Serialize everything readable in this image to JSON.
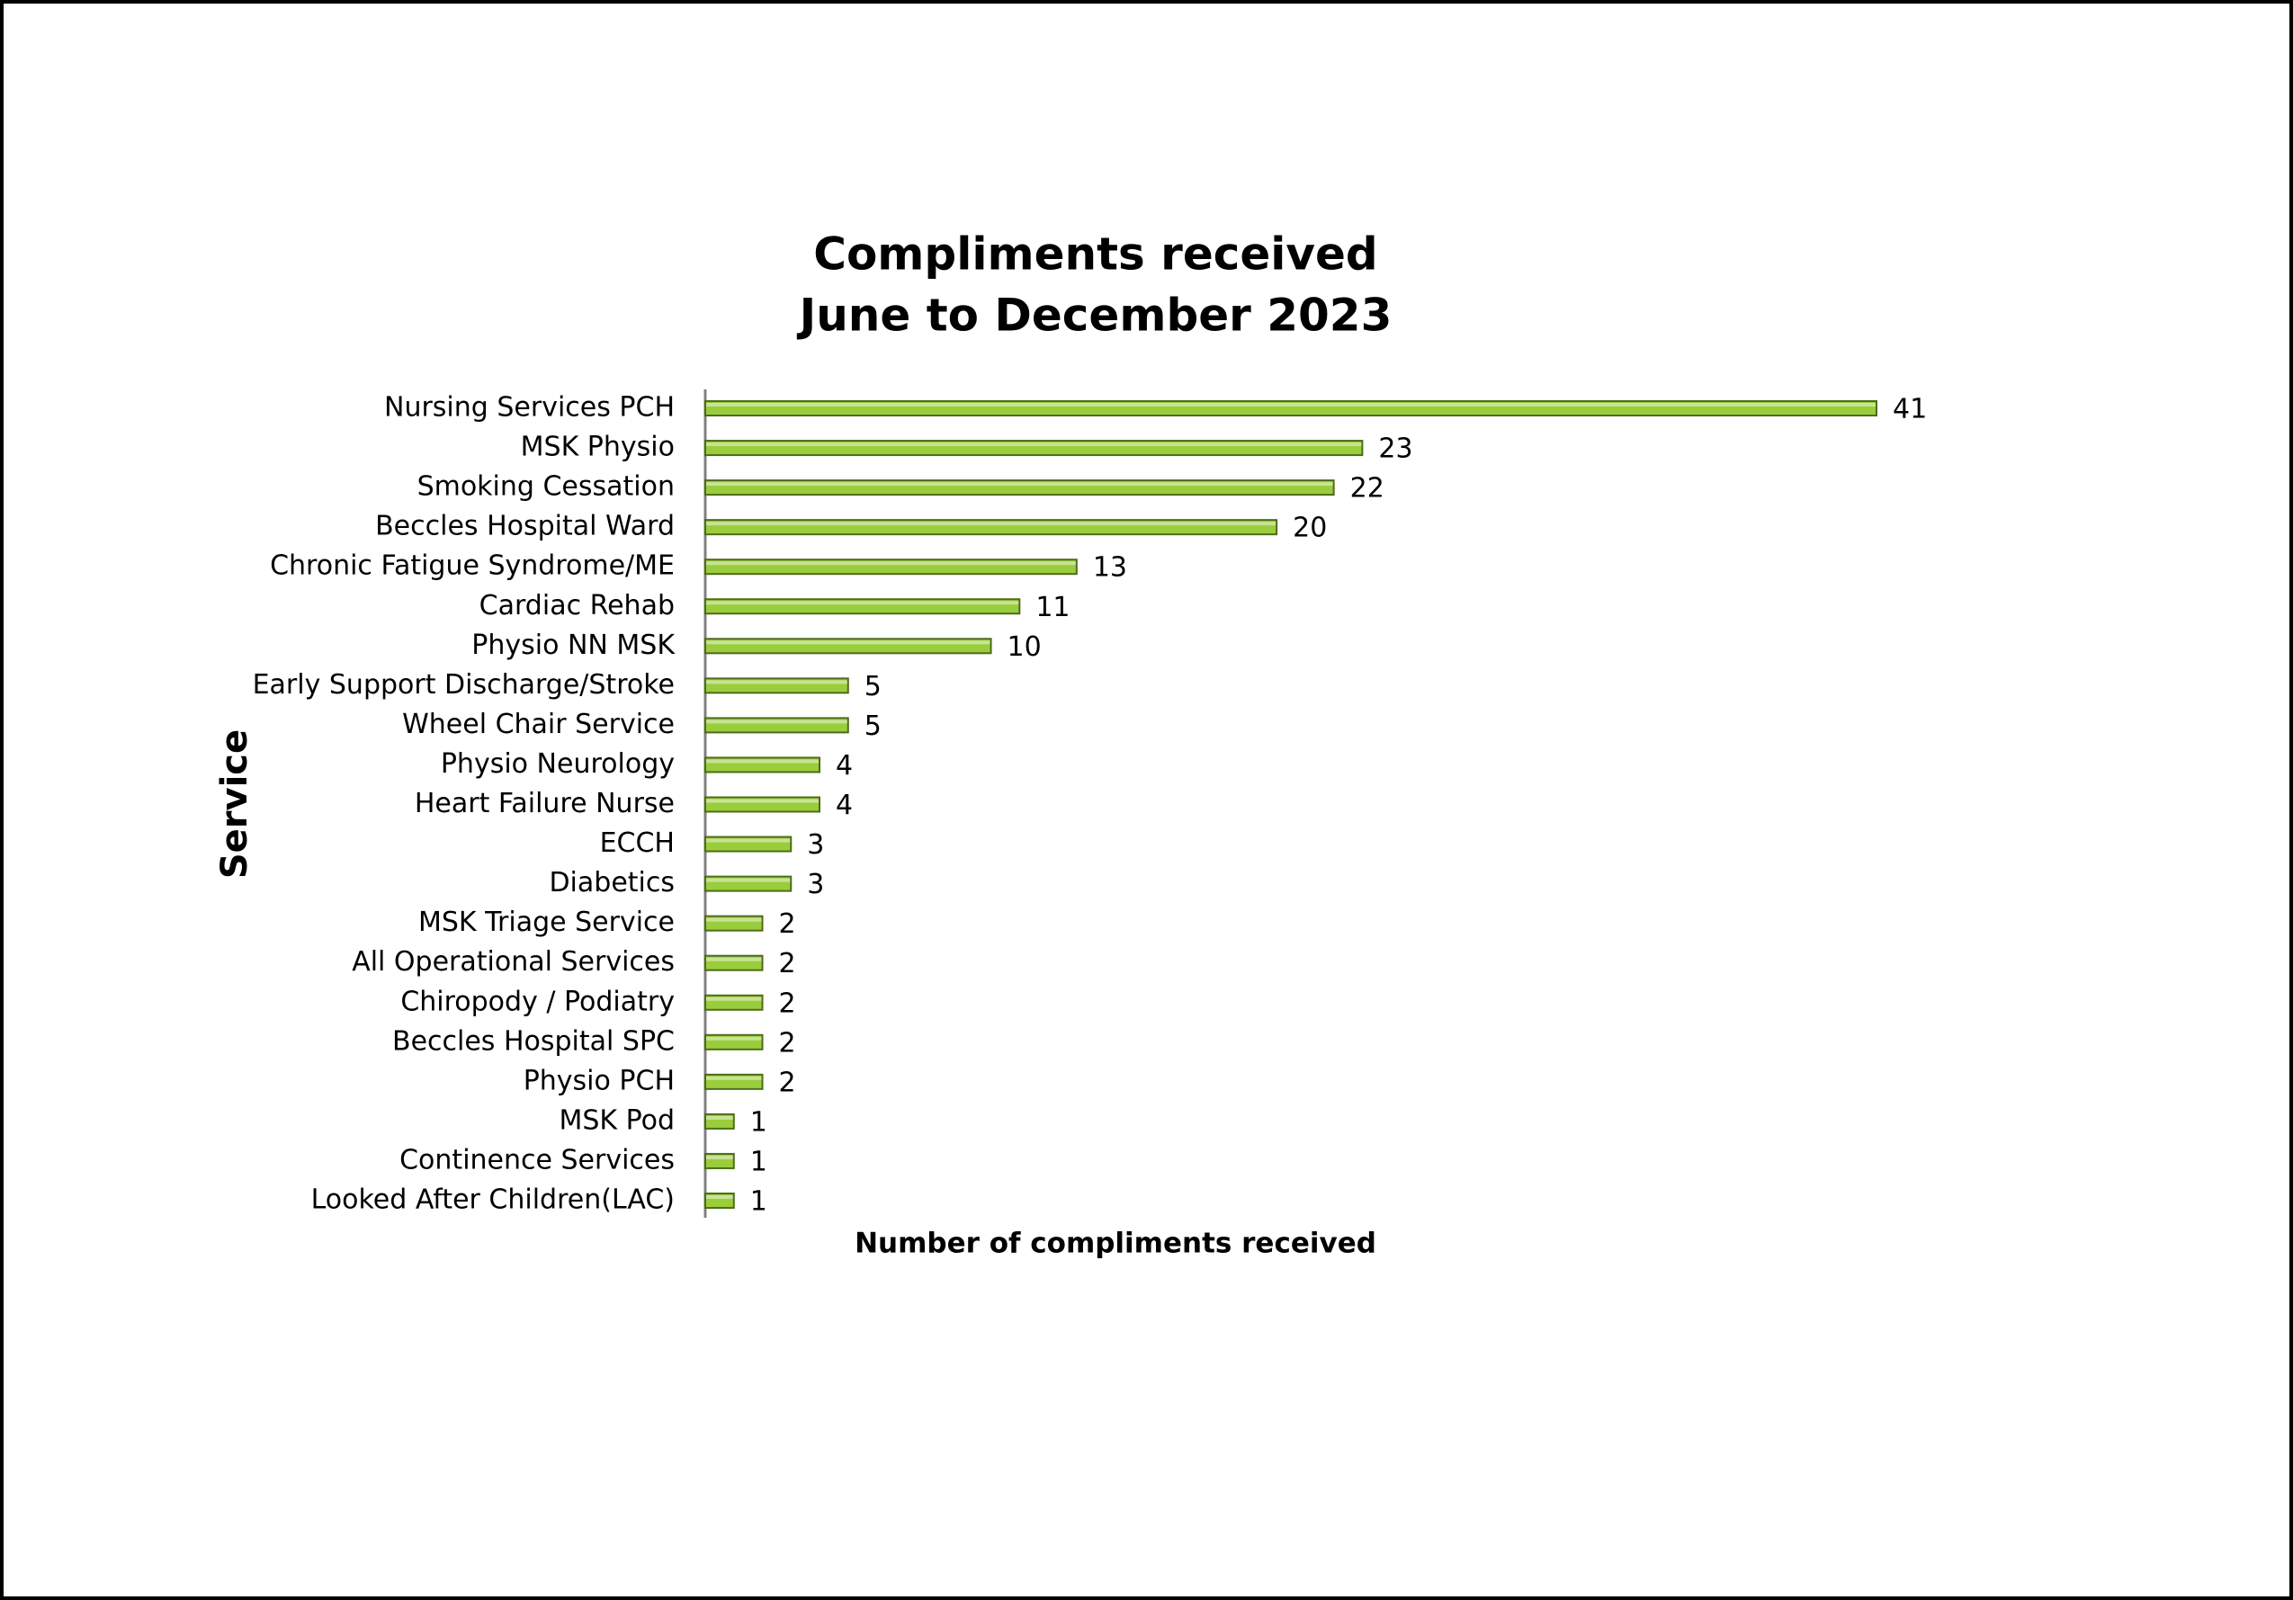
{
  "chart_data": {
    "type": "bar",
    "orientation": "horizontal",
    "title": "Compliments received",
    "subtitle": "June to December 2023",
    "x_label": "Number of compliments received",
    "y_label": "Service",
    "color": "#9acd3c",
    "categories": [
      "Nursing Services PCH",
      "MSK Physio",
      "Smoking Cessation",
      "Beccles Hospital Ward",
      "Chronic Fatigue Syndrome/ME",
      "Cardiac Rehab",
      "Physio NN MSK",
      "Early Support Discharge/Stroke",
      "Wheel Chair Service",
      "Physio Neurology",
      "Heart Failure Nurse",
      "ECCH",
      "Diabetics",
      "MSK Triage Service",
      "All Operational Services",
      "Chiropody / Podiatry",
      "Beccles Hospital SPC",
      "Physio PCH",
      "MSK Pod",
      "Continence Services",
      "Looked After Children(LAC)"
    ],
    "values": [
      41,
      23,
      22,
      20,
      13,
      11,
      10,
      5,
      5,
      4,
      4,
      3,
      3,
      2,
      2,
      2,
      2,
      2,
      1,
      1,
      1
    ]
  }
}
